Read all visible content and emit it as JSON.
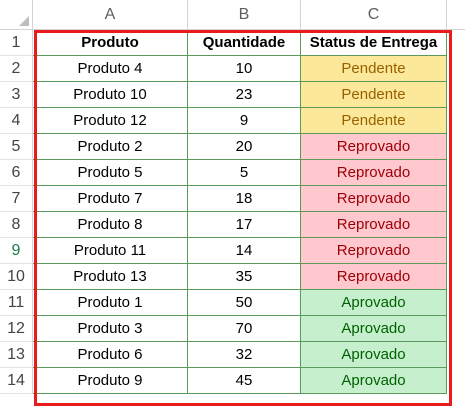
{
  "columns": [
    "A",
    "B",
    "C"
  ],
  "row_numbers": [
    "1",
    "2",
    "3",
    "4",
    "5",
    "6",
    "7",
    "8",
    "9",
    "10",
    "11",
    "12",
    "13",
    "14"
  ],
  "headers": {
    "produto": "Produto",
    "quantidade": "Quantidade",
    "status": "Status de Entrega"
  },
  "rows": [
    {
      "produto": "Produto 4",
      "quantidade": "10",
      "status": "Pendente"
    },
    {
      "produto": "Produto 10",
      "quantidade": "23",
      "status": "Pendente"
    },
    {
      "produto": "Produto 12",
      "quantidade": "9",
      "status": "Pendente"
    },
    {
      "produto": "Produto 2",
      "quantidade": "20",
      "status": "Reprovado"
    },
    {
      "produto": "Produto 5",
      "quantidade": "5",
      "status": "Reprovado"
    },
    {
      "produto": "Produto 7",
      "quantidade": "18",
      "status": "Reprovado"
    },
    {
      "produto": "Produto 8",
      "quantidade": "17",
      "status": "Reprovado"
    },
    {
      "produto": "Produto 11",
      "quantidade": "14",
      "status": "Reprovado"
    },
    {
      "produto": "Produto 13",
      "quantidade": "35",
      "status": "Reprovado"
    },
    {
      "produto": "Produto 1",
      "quantidade": "50",
      "status": "Aprovado"
    },
    {
      "produto": "Produto 3",
      "quantidade": "70",
      "status": "Aprovado"
    },
    {
      "produto": "Produto 6",
      "quantidade": "32",
      "status": "Aprovado"
    },
    {
      "produto": "Produto 9",
      "quantidade": "45",
      "status": "Aprovado"
    }
  ],
  "status_colors": {
    "Pendente": {
      "fill": "#fbe89a",
      "text": "#9a6000"
    },
    "Reprovado": {
      "fill": "#ffc7ce",
      "text": "#9c0006"
    },
    "Aprovado": {
      "fill": "#c6efce",
      "text": "#006100"
    }
  },
  "selection_color": "#e81c1c",
  "active_row": "9"
}
